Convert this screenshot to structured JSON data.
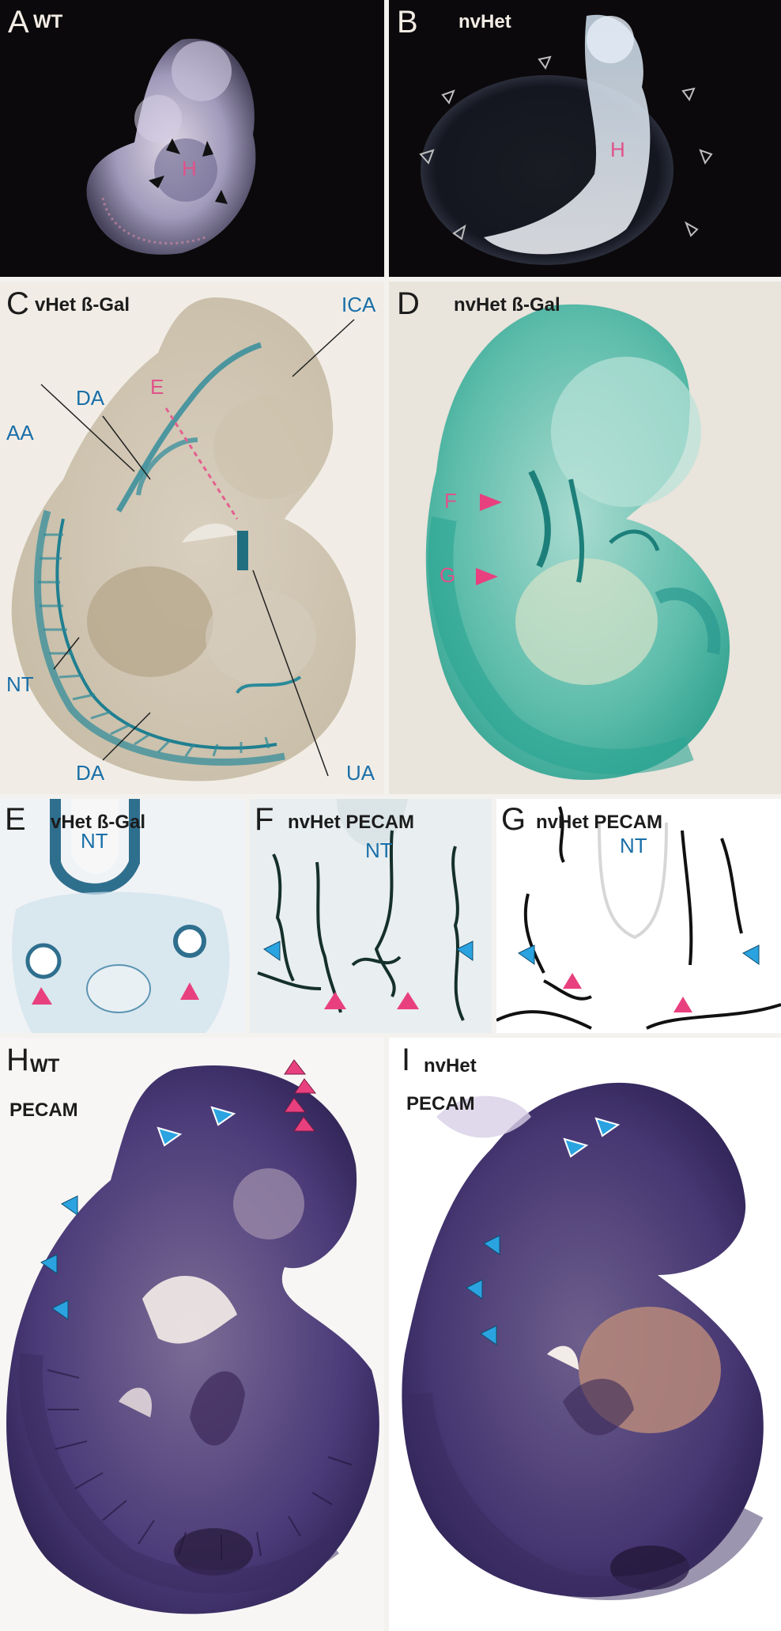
{
  "panels": {
    "A": {
      "letter": "A",
      "title": "WT",
      "marker": "H"
    },
    "B": {
      "letter": "B",
      "title": "nvHet",
      "marker": "H"
    },
    "C": {
      "letter": "C",
      "title": "vHet ß-Gal",
      "labels": {
        "ica": "ICA",
        "e": "E",
        "da_top": "DA",
        "aa": "AA",
        "nt": "NT",
        "ua": "UA",
        "da_bottom": "DA"
      }
    },
    "D": {
      "letter": "D",
      "title": "nvHet ß-Gal",
      "labels": {
        "f": "F",
        "g": "G"
      }
    },
    "E": {
      "letter": "E",
      "title": "vHet ß-Gal",
      "nt": "NT"
    },
    "F": {
      "letter": "F",
      "title": "nvHet PECAM",
      "nt": "NT"
    },
    "G": {
      "letter": "G",
      "title": "nvHet PECAM",
      "nt": "NT"
    },
    "H": {
      "letter": "H",
      "title_line1": "WT",
      "title_line2": "PECAM"
    },
    "I": {
      "letter": "I",
      "title_line1": "nvHet",
      "title_line2": "PECAM"
    }
  },
  "colors": {
    "label_blue": "#1a6fa8",
    "label_pink": "#e0528a",
    "arrow_blue": "#2ba3e0",
    "arrow_pink": "#e8407e",
    "dark_bg": "#0c0a0c",
    "xgal_green": "#3aa9a0",
    "pecam_purple": "#4a3a78"
  }
}
